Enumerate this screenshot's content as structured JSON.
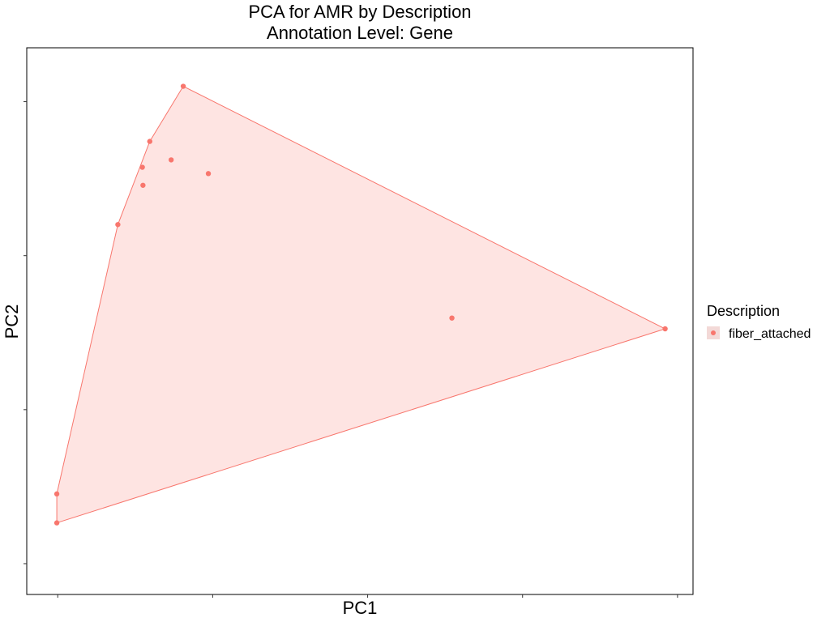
{
  "chart_data": {
    "type": "scatter",
    "title": "PCA for AMR by Description",
    "subtitle": "Annotation Level: Gene",
    "xlabel": "PC1",
    "ylabel": "PC2",
    "xlim": [
      -0.1,
      2.05
    ],
    "ylim": [
      -2.2,
      1.35
    ],
    "x_ticks": [
      0,
      0.5,
      1,
      1.5,
      2
    ],
    "y_ticks": [
      -2,
      -1,
      0,
      1
    ],
    "tick_labels_shown": false,
    "grid": false,
    "legend": {
      "title": "Description",
      "position": "right",
      "entries": [
        "fiber_attached"
      ]
    },
    "series": [
      {
        "name": "fiber_attached",
        "color": "#F8766D",
        "hull": true,
        "points": [
          {
            "x": 0.405,
            "y": 1.1
          },
          {
            "x": 0.297,
            "y": 0.742
          },
          {
            "x": 0.366,
            "y": 0.622
          },
          {
            "x": 0.273,
            "y": 0.574
          },
          {
            "x": 0.486,
            "y": 0.533
          },
          {
            "x": 0.275,
            "y": 0.457
          },
          {
            "x": 0.194,
            "y": 0.202
          },
          {
            "x": 1.272,
            "y": -0.405
          },
          {
            "x": 1.96,
            "y": -0.475
          },
          {
            "x": -0.003,
            "y": -1.547
          },
          {
            "x": -0.003,
            "y": -1.735
          }
        ]
      }
    ]
  }
}
